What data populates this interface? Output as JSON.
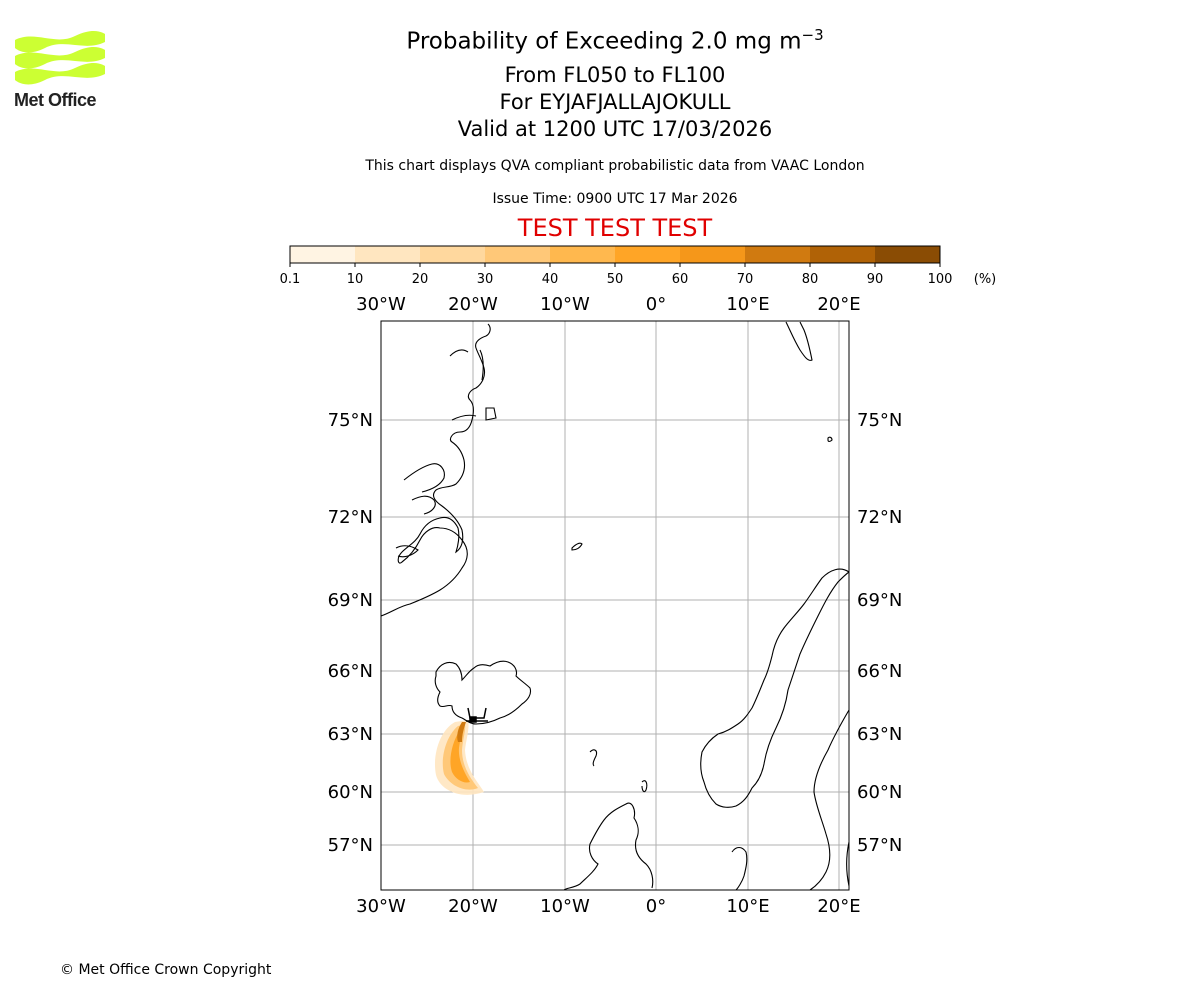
{
  "header": {
    "title": "Probability of Exceeding 2.0 mg m",
    "title_unit_exponent": "−3",
    "flight_levels": "From FL050 to FL100",
    "volcano": "For EYJAFJALLAJOKULL",
    "valid": "Valid at 1200 UTC 17/03/2026",
    "disclaimer": "This chart displays QVA compliant probabilistic data from VAAC London",
    "issue_time": "Issue Time: 0900 UTC 17 Mar 2026",
    "test_banner": "TEST TEST TEST"
  },
  "logo": {
    "text": "Met Office",
    "color": "#ccff33"
  },
  "colorbar": {
    "unit": "(%)",
    "ticks": [
      "0.1",
      "10",
      "20",
      "30",
      "40",
      "50",
      "60",
      "70",
      "80",
      "90",
      "100"
    ],
    "colors": [
      "#fff4e3",
      "#ffe6c0",
      "#ffd89e",
      "#ffc878",
      "#ffb84e",
      "#ffa526",
      "#f5971a",
      "#d07a10",
      "#b06206",
      "#8a4c04",
      "#64400d"
    ]
  },
  "map": {
    "lon_labels": [
      "30°W",
      "20°W",
      "10°W",
      "0°",
      "10°E",
      "20°E"
    ],
    "lat_labels": [
      "75°N",
      "72°N",
      "69°N",
      "66°N",
      "63°N",
      "60°N",
      "57°N"
    ],
    "source_marker_color": "#000000",
    "plume_colors": [
      "#ffe6c0",
      "#ffc878",
      "#ffa526",
      "#d07a10"
    ]
  },
  "footer": {
    "copyright": "© Met Office Crown Copyright"
  }
}
